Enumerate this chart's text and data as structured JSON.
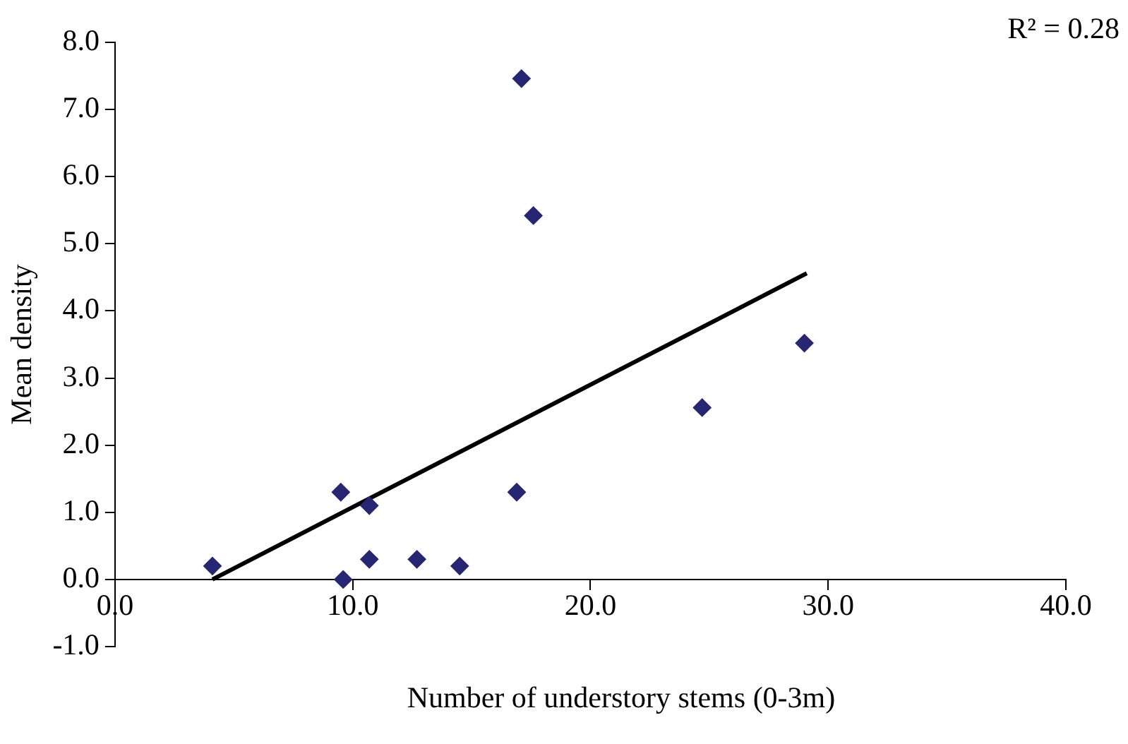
{
  "chart_data": {
    "type": "scatter",
    "xlabel": "Number of understory stems (0-3m)",
    "ylabel": "Mean density",
    "annotations": [
      "R² = 0.28"
    ],
    "legend": false,
    "xlim": [
      0,
      40
    ],
    "xticks": [
      {
        "value": 0,
        "label": "0.0"
      },
      {
        "value": 10,
        "label": "10.0"
      },
      {
        "value": 20,
        "label": "20.0"
      },
      {
        "value": 30,
        "label": "30.0"
      },
      {
        "value": 40,
        "label": "40.0"
      }
    ],
    "ylim": [
      -1,
      8
    ],
    "yticks": [
      {
        "value": -1,
        "label": "-1.0"
      },
      {
        "value": 0,
        "label": "0.0"
      },
      {
        "value": 1,
        "label": "1.0"
      },
      {
        "value": 2,
        "label": "2.0"
      },
      {
        "value": 3,
        "label": "3.0"
      },
      {
        "value": 4,
        "label": "4.0"
      },
      {
        "value": 5,
        "label": "5.0"
      },
      {
        "value": 6,
        "label": "6.0"
      },
      {
        "value": 7,
        "label": "7.0"
      },
      {
        "value": 8,
        "label": "8.0"
      }
    ],
    "series": [
      {
        "type": "scatter",
        "marker": "diamond",
        "color": "#262673",
        "x": [
          4.1,
          9.5,
          9.6,
          10.7,
          10.7,
          12.7,
          14.5,
          16.9,
          17.1,
          17.6,
          24.7,
          29.0
        ],
        "values": [
          0.2,
          1.3,
          0.0,
          1.1,
          0.3,
          0.3,
          0.2,
          1.3,
          7.46,
          5.42,
          2.56,
          3.52
        ]
      },
      {
        "type": "line",
        "marker": "none",
        "color": "#000000",
        "x": [
          4.1,
          29.1
        ],
        "values": [
          0,
          4.56
        ]
      }
    ]
  }
}
